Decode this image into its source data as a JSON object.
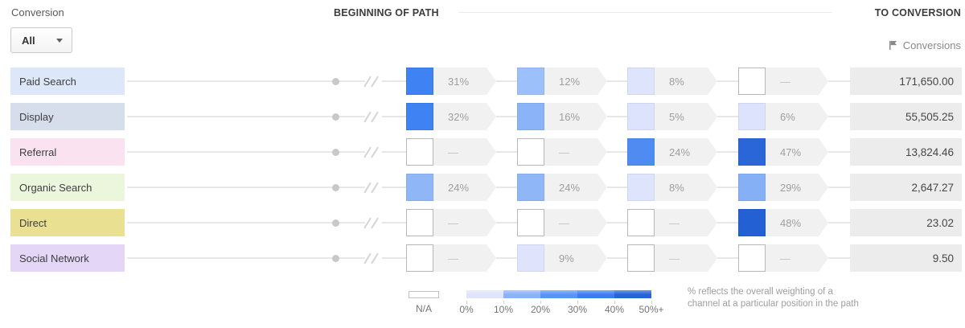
{
  "controls": {
    "conversion_label": "Conversion",
    "dropdown_value": "All"
  },
  "headers": {
    "beginning_of_path": "BEGINNING OF PATH",
    "to_conversion": "TO CONVERSION",
    "conversions_metric": "Conversions"
  },
  "empty_dash": "—",
  "rows": [
    {
      "channel": "Paid Search",
      "label_bg": "#dce8fa",
      "conversions": "171,650.00",
      "cells": [
        {
          "pct": "31%",
          "color": "#3f82f4"
        },
        {
          "pct": "12%",
          "color": "#9cc0f9"
        },
        {
          "pct": "8%",
          "color": "#dee4fc"
        },
        {
          "pct": "",
          "color": ""
        }
      ]
    },
    {
      "channel": "Display",
      "label_bg": "#d7deeb",
      "conversions": "55,505.25",
      "cells": [
        {
          "pct": "32%",
          "color": "#3f82f4"
        },
        {
          "pct": "16%",
          "color": "#8ab3f8"
        },
        {
          "pct": "5%",
          "color": "#dde3fc"
        },
        {
          "pct": "6%",
          "color": "#dde3fc"
        }
      ]
    },
    {
      "channel": "Referral",
      "label_bg": "#fbe2f0",
      "conversions": "13,824.46",
      "cells": [
        {
          "pct": "",
          "color": ""
        },
        {
          "pct": "",
          "color": ""
        },
        {
          "pct": "24%",
          "color": "#4e8cf2"
        },
        {
          "pct": "47%",
          "color": "#2b66d9"
        }
      ]
    },
    {
      "channel": "Organic Search",
      "label_bg": "#ebf6dd",
      "conversions": "2,647.27",
      "cells": [
        {
          "pct": "24%",
          "color": "#8fb7f7"
        },
        {
          "pct": "24%",
          "color": "#8fb7f7"
        },
        {
          "pct": "8%",
          "color": "#dee4fc"
        },
        {
          "pct": "29%",
          "color": "#86b0f6"
        }
      ]
    },
    {
      "channel": "Direct",
      "label_bg": "#e9e092",
      "conversions": "23.02",
      "cells": [
        {
          "pct": "",
          "color": ""
        },
        {
          "pct": "",
          "color": ""
        },
        {
          "pct": "",
          "color": ""
        },
        {
          "pct": "48%",
          "color": "#2360d3"
        }
      ]
    },
    {
      "channel": "Social Network",
      "label_bg": "#e4d6f6",
      "conversions": "9.50",
      "cells": [
        {
          "pct": "",
          "color": ""
        },
        {
          "pct": "9%",
          "color": "#dfe4fc"
        },
        {
          "pct": "",
          "color": ""
        },
        {
          "pct": "",
          "color": ""
        }
      ]
    }
  ],
  "legend": {
    "na_label": "N/A",
    "scale_colors": [
      "#dfe4fc",
      "#8ab2f8",
      "#5b92f4",
      "#3d7cf0",
      "#2563d6"
    ],
    "scale_labels": [
      "0%",
      "10%",
      "20%",
      "30%",
      "40%",
      "50%+"
    ]
  },
  "footnote": {
    "line1": "% reflects the overall weighting of a",
    "line2": "channel at a particular position in the path"
  }
}
